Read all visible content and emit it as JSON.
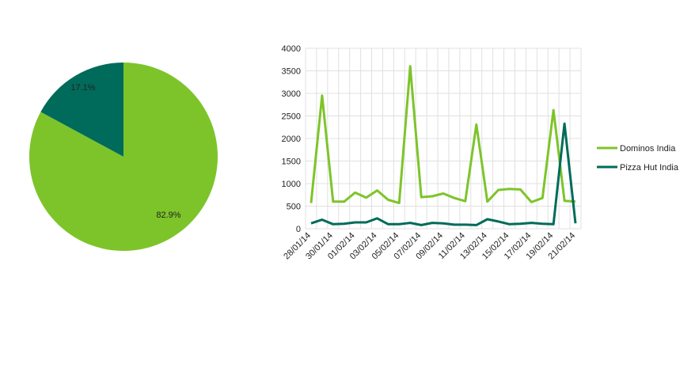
{
  "colors": {
    "dominos": "#7DC42A",
    "pizzahut": "#006B5A",
    "grid": "#E0E0E0",
    "text": "#222222"
  },
  "chart_data": [
    {
      "type": "pie",
      "slices": [
        {
          "name": "Dominos India",
          "value": 82.9,
          "label": "82.9%"
        },
        {
          "name": "Pizza Hut India",
          "value": 17.1,
          "label": "17.1%"
        }
      ]
    },
    {
      "type": "line",
      "x": [
        "28/01/14",
        "29/01/14",
        "30/01/14",
        "31/01/14",
        "01/02/14",
        "02/02/14",
        "03/02/14",
        "04/02/14",
        "05/02/14",
        "06/02/14",
        "07/02/14",
        "08/02/14",
        "09/02/14",
        "10/02/14",
        "11/02/14",
        "12/02/14",
        "13/02/14",
        "14/02/14",
        "15/02/14",
        "16/02/14",
        "17/02/14",
        "18/02/14",
        "19/02/14",
        "20/02/14",
        "21/02/14"
      ],
      "tick_labels": [
        "28/01/14",
        "30/01/14",
        "01/02/14",
        "03/02/14",
        "05/02/14",
        "07/02/14",
        "09/02/14",
        "11/02/14",
        "13/02/14",
        "15/02/14",
        "17/02/14",
        "19/02/14",
        "21/02/14"
      ],
      "yticks": [
        "0",
        "500",
        "1000",
        "1500",
        "2000",
        "2500",
        "3000",
        "3500",
        "4000"
      ],
      "ylim": [
        0,
        4000
      ],
      "grid": true,
      "legend": "right",
      "series": [
        {
          "name": "Dominos India",
          "values": [
            570,
            2950,
            600,
            600,
            800,
            690,
            850,
            640,
            570,
            3600,
            700,
            720,
            780,
            680,
            610,
            2310,
            600,
            860,
            880,
            870,
            590,
            680,
            2630,
            620,
            600
          ]
        },
        {
          "name": "Pizza Hut India",
          "values": [
            120,
            200,
            100,
            110,
            140,
            140,
            230,
            100,
            100,
            130,
            80,
            130,
            120,
            90,
            90,
            80,
            210,
            160,
            100,
            110,
            130,
            110,
            100,
            2330,
            120
          ]
        }
      ]
    }
  ]
}
